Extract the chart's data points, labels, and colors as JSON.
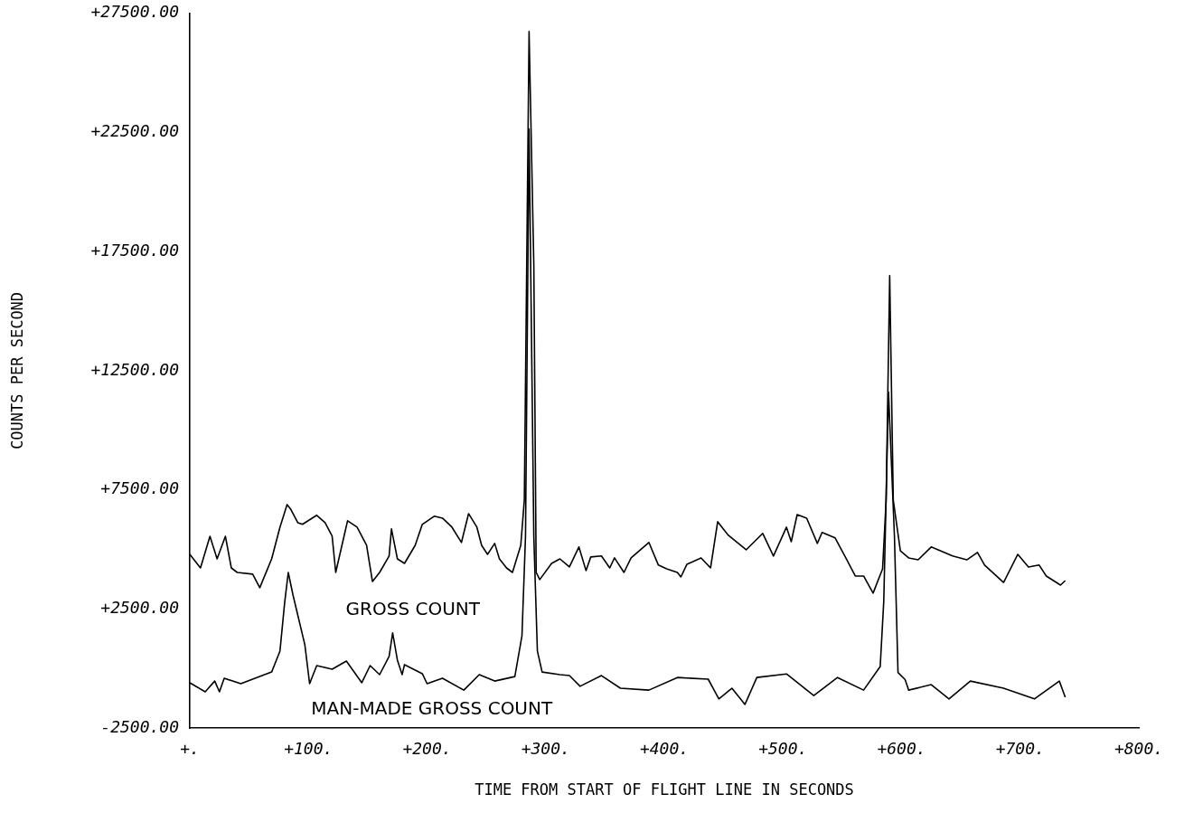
{
  "chart_data": {
    "type": "line",
    "xlabel": "TIME FROM START OF FLIGHT LINE IN SECONDS",
    "ylabel": "COUNTS PER SECOND",
    "legend": false,
    "grid": false,
    "line_style": "solid",
    "xlim": [
      0,
      800
    ],
    "xticks": [
      {
        "value": 0,
        "label": "+."
      },
      {
        "value": 100,
        "label": "+100."
      },
      {
        "value": 200,
        "label": "+200."
      },
      {
        "value": 300,
        "label": "+300."
      },
      {
        "value": 400,
        "label": "+400."
      },
      {
        "value": 500,
        "label": "+500."
      },
      {
        "value": 600,
        "label": "+600."
      },
      {
        "value": 700,
        "label": "+700."
      },
      {
        "value": 800,
        "label": "+800."
      }
    ],
    "ylim": [
      -2500,
      27500
    ],
    "yticks": [
      {
        "value": -2500,
        "label": "-2500.00"
      },
      {
        "value": 2500,
        "label": "+2500.00"
      },
      {
        "value": 7500,
        "label": "+7500.00"
      },
      {
        "value": 12500,
        "label": "+12500.00"
      },
      {
        "value": 17500,
        "label": "+17500.00"
      },
      {
        "value": 22500,
        "label": "+22500.00"
      },
      {
        "value": 27500,
        "label": "+27500.00"
      }
    ],
    "series": [
      {
        "name": "GROSS COUNT",
        "color": "#000000",
        "x": [
          0,
          9,
          17,
          23,
          30,
          35,
          40,
          53,
          59,
          69,
          76,
          82,
          85,
          91,
          95,
          107,
          114,
          120,
          123,
          130,
          133,
          141,
          149,
          154,
          160,
          168,
          170,
          175,
          181,
          190,
          196,
          206,
          213,
          221,
          229,
          235,
          242,
          246,
          251,
          257,
          261,
          267,
          272,
          279,
          282,
          286,
          290,
          292,
          295,
          305,
          312,
          320,
          328,
          334,
          338,
          347,
          354,
          358,
          366,
          372,
          387,
          395,
          402,
          411,
          414,
          419,
          431,
          439,
          445,
          454,
          469,
          483,
          492,
          503,
          507,
          512,
          520,
          529,
          533,
          544,
          553,
          561,
          568,
          576,
          584,
          587,
          590,
          593,
          599,
          606,
          614,
          625,
          643,
          655,
          664,
          670,
          686,
          698,
          707,
          716,
          722,
          734,
          738
        ],
        "values": [
          4790,
          4220,
          5550,
          4600,
          5550,
          4220,
          4030,
          3960,
          3390,
          4600,
          5930,
          6880,
          6690,
          6120,
          6050,
          6430,
          6120,
          5550,
          4030,
          5550,
          6200,
          5930,
          5170,
          3650,
          4030,
          4720,
          5860,
          4600,
          4410,
          5170,
          6050,
          6390,
          6310,
          5930,
          5290,
          6500,
          5930,
          5170,
          4790,
          5250,
          4600,
          4220,
          4030,
          5170,
          7070,
          26740,
          16950,
          4030,
          3730,
          4410,
          4600,
          4260,
          5100,
          4110,
          4680,
          4720,
          4220,
          4640,
          4030,
          4640,
          5290,
          4340,
          4180,
          4030,
          3840,
          4370,
          4640,
          4220,
          6160,
          5590,
          4980,
          5670,
          4720,
          5930,
          5320,
          6460,
          6310,
          5250,
          5710,
          5480,
          4640,
          3880,
          3880,
          3160,
          4180,
          7070,
          16490,
          7070,
          4940,
          4640,
          4560,
          5100,
          4720,
          4560,
          4870,
          4340,
          3610,
          4790,
          4260,
          4340,
          3880,
          3500,
          3690
        ]
      },
      {
        "name": "MAN-MADE GROSS COUNT",
        "color": "#000000",
        "x": [
          0,
          13,
          21,
          25,
          29,
          43,
          59,
          69,
          76,
          80,
          83,
          87,
          97,
          101,
          107,
          120,
          132,
          145,
          152,
          160,
          168,
          171,
          175,
          179,
          181,
          196,
          200,
          213,
          231,
          244,
          257,
          274,
          280,
          283,
          286,
          290,
          293,
          297,
          312,
          320,
          329,
          347,
          363,
          387,
          411,
          437,
          446,
          457,
          468,
          478,
          503,
          526,
          546,
          568,
          582,
          585,
          589,
          594,
          597,
          603,
          606,
          625,
          640,
          658,
          686,
          712,
          733,
          738
        ],
        "values": [
          -600,
          -980,
          -530,
          -980,
          -410,
          -640,
          -340,
          -150,
          730,
          2780,
          4030,
          3080,
          990,
          -640,
          120,
          -30,
          310,
          -600,
          120,
          -260,
          500,
          1490,
          350,
          -260,
          160,
          -220,
          -640,
          -410,
          -910,
          -260,
          -530,
          -340,
          1370,
          5550,
          22650,
          5550,
          730,
          -150,
          -260,
          -300,
          -750,
          -300,
          -830,
          -910,
          -380,
          -450,
          -1280,
          -830,
          -1510,
          -380,
          -230,
          -1140,
          -380,
          -910,
          80,
          2820,
          11600,
          5550,
          -170,
          -470,
          -910,
          -680,
          -1280,
          -530,
          -830,
          -1280,
          -530,
          -1210
        ]
      }
    ]
  }
}
